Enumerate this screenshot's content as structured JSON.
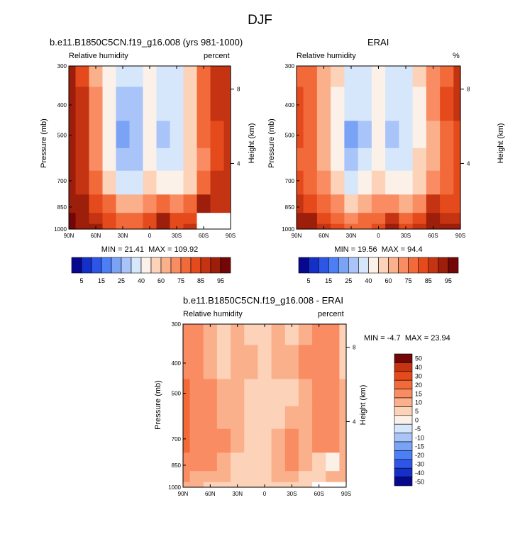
{
  "figure_title": "DJF",
  "colors": {
    "abs_palette": [
      "#08088f",
      "#1530c8",
      "#2e56e6",
      "#4c7ff5",
      "#7aa3f6",
      "#a8c4f8",
      "#d6e6fb",
      "#fbf1e8",
      "#fcd2b8",
      "#fbb08c",
      "#f98c62",
      "#f36a3a",
      "#e54a1c",
      "#c43412",
      "#9d1e0a",
      "#730606"
    ],
    "diff_palette": [
      "#08088f",
      "#1530c8",
      "#2e56e6",
      "#4c7ff5",
      "#7aa3f6",
      "#a8c4f8",
      "#d6e6fb",
      "#fbf1e8",
      "#fcd2b8",
      "#fbb08c",
      "#f98c62",
      "#f36a3a",
      "#e54a1c",
      "#c43412",
      "#730606"
    ]
  },
  "chart_data": [
    {
      "type": "heatmap",
      "title": "b.e11.B1850C5CN.f19_g16.008 (yrs 981-1000)",
      "left_label": "Relative humidity",
      "right_label": "percent",
      "xlabel": "",
      "ylabel": "Pressure (mb)",
      "ylabel_right": "Height (km)",
      "x_ticks": [
        "90N",
        "60N",
        "30N",
        "0",
        "30S",
        "60S",
        "90S"
      ],
      "y_ticks": [
        300,
        400,
        500,
        700,
        850,
        1000
      ],
      "y_right_ticks": [
        8,
        4
      ],
      "xlim": [
        90,
        -90
      ],
      "ylim": [
        300,
        1000
      ],
      "min": 21.41,
      "max": 109.92,
      "min_label": "MIN =",
      "max_label": "MAX =",
      "colorbar_ticks": [
        5,
        15,
        25,
        40,
        60,
        75,
        85,
        95
      ],
      "grid_pressure": [
        300,
        400,
        500,
        600,
        700,
        850,
        925,
        1000
      ],
      "grid_lat": [
        90,
        75,
        60,
        45,
        30,
        15,
        0,
        -15,
        -30,
        -45,
        -60,
        -75,
        -90
      ],
      "values": [
        [
          85,
          78,
          62,
          45,
          30,
          30,
          45,
          35,
          35,
          50,
          70,
          80,
          80
        ],
        [
          90,
          82,
          65,
          45,
          28,
          28,
          45,
          30,
          30,
          50,
          72,
          80,
          82
        ],
        [
          92,
          82,
          65,
          45,
          22,
          25,
          45,
          28,
          30,
          50,
          70,
          78,
          82
        ],
        [
          92,
          82,
          68,
          48,
          25,
          28,
          48,
          32,
          35,
          52,
          68,
          78,
          80
        ],
        [
          92,
          82,
          72,
          55,
          35,
          38,
          52,
          45,
          45,
          55,
          70,
          80,
          80
        ],
        [
          92,
          88,
          78,
          70,
          60,
          62,
          65,
          70,
          65,
          70,
          85,
          80,
          80
        ],
        [
          95,
          90,
          82,
          75,
          70,
          72,
          75,
          85,
          75,
          78,
          88,
          80,
          80
        ],
        [
          100,
          92,
          85,
          78,
          72,
          72,
          78,
          88,
          78,
          80,
          85,
          80,
          80
        ]
      ],
      "missing": [
        [
          6,
          10
        ],
        [
          6,
          11
        ],
        [
          6,
          12
        ],
        [
          7,
          10
        ],
        [
          7,
          11
        ],
        [
          7,
          12
        ]
      ]
    },
    {
      "type": "heatmap",
      "title": "ERAI",
      "left_label": "Relative humidity",
      "right_label": "%",
      "xlabel": "",
      "ylabel": "Pressure (mb)",
      "ylabel_right": "Height (km)",
      "x_ticks": [
        "90N",
        "60N",
        "30N",
        "0",
        "30S",
        "60S",
        "90S"
      ],
      "y_ticks": [
        300,
        400,
        500,
        700,
        850,
        1000
      ],
      "y_right_ticks": [
        8,
        4
      ],
      "xlim": [
        90,
        -90
      ],
      "ylim": [
        300,
        1000
      ],
      "min": 19.56,
      "max": 94.4,
      "min_label": "MIN =",
      "max_label": "MAX =",
      "colorbar_ticks": [
        5,
        15,
        25,
        40,
        60,
        75,
        85,
        95
      ],
      "grid_pressure": [
        300,
        400,
        500,
        600,
        700,
        850,
        925,
        1000
      ],
      "grid_lat": [
        90,
        75,
        60,
        45,
        30,
        15,
        0,
        -15,
        -30,
        -45,
        -60,
        -75,
        -90
      ],
      "values": [
        [
          72,
          70,
          62,
          50,
          35,
          38,
          45,
          32,
          32,
          50,
          65,
          72,
          80
        ],
        [
          75,
          72,
          60,
          48,
          30,
          32,
          45,
          30,
          30,
          48,
          65,
          75,
          80
        ],
        [
          75,
          70,
          60,
          45,
          20,
          28,
          45,
          28,
          32,
          48,
          62,
          72,
          78
        ],
        [
          72,
          70,
          62,
          48,
          25,
          30,
          48,
          30,
          35,
          50,
          62,
          70,
          75
        ],
        [
          75,
          72,
          65,
          55,
          38,
          40,
          52,
          42,
          45,
          55,
          65,
          72,
          75
        ],
        [
          82,
          78,
          72,
          68,
          58,
          60,
          65,
          68,
          62,
          68,
          80,
          75,
          78
        ],
        [
          88,
          85,
          78,
          72,
          68,
          70,
          72,
          82,
          72,
          78,
          88,
          80,
          82
        ],
        [
          92,
          88,
          82,
          75,
          70,
          72,
          78,
          85,
          78,
          82,
          85,
          85,
          85
        ]
      ],
      "missing": []
    },
    {
      "type": "heatmap",
      "title": "b.e11.B1850C5CN.f19_g16.008 - ERAI",
      "left_label": "Relative humidity",
      "right_label": "percent",
      "xlabel": "",
      "ylabel": "Pressure (mb)",
      "ylabel_right": "Height (km)",
      "x_ticks": [
        "90N",
        "60N",
        "30N",
        "0",
        "30S",
        "60S",
        "90S"
      ],
      "y_ticks": [
        300,
        400,
        500,
        700,
        850,
        1000
      ],
      "y_right_ticks": [
        8,
        4
      ],
      "xlim": [
        90,
        -90
      ],
      "ylim": [
        300,
        1000
      ],
      "min": -4.7,
      "max": 23.94,
      "min_label": "MIN =",
      "max_label": "MAX =",
      "colorbar_ticks": [
        50,
        40,
        30,
        20,
        15,
        10,
        5,
        0,
        -5,
        -10,
        -15,
        -20,
        -30,
        -40,
        -50
      ],
      "grid_pressure": [
        300,
        400,
        500,
        600,
        700,
        850,
        925,
        1000
      ],
      "grid_lat": [
        90,
        75,
        60,
        45,
        30,
        15,
        0,
        -15,
        -30,
        -45,
        -60,
        -75,
        -90
      ],
      "values": [
        [
          12,
          10,
          6,
          4,
          6,
          4,
          2,
          6,
          4,
          8,
          10,
          12,
          4
        ],
        [
          14,
          10,
          8,
          4,
          8,
          6,
          2,
          6,
          6,
          10,
          12,
          10,
          4
        ],
        [
          16,
          12,
          10,
          6,
          8,
          4,
          2,
          4,
          4,
          8,
          10,
          12,
          6
        ],
        [
          18,
          14,
          12,
          8,
          6,
          4,
          2,
          4,
          8,
          8,
          10,
          10,
          6
        ],
        [
          16,
          14,
          12,
          10,
          6,
          4,
          2,
          6,
          10,
          8,
          10,
          12,
          8
        ],
        [
          12,
          10,
          10,
          8,
          4,
          2,
          2,
          8,
          14,
          6,
          4,
          -2,
          6
        ],
        [
          10,
          8,
          6,
          6,
          4,
          2,
          2,
          6,
          8,
          2,
          0,
          6,
          6
        ],
        [
          8,
          6,
          4,
          2,
          4,
          0,
          2,
          4,
          4,
          2,
          6,
          6,
          6
        ]
      ],
      "missing": [
        [
          7,
          10
        ],
        [
          7,
          11
        ],
        [
          7,
          12
        ]
      ]
    }
  ]
}
